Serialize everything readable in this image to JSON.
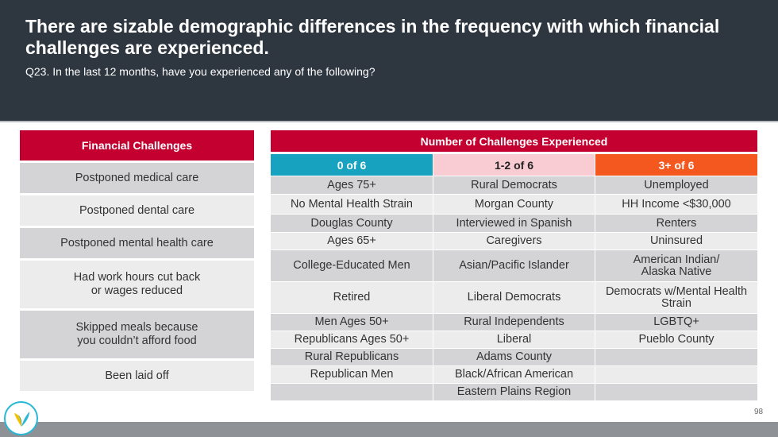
{
  "header": {
    "title": "There are sizable demographic differences in the frequency with which financial challenges are experienced.",
    "subtitle": "Q23. In the last 12 months, have you experienced any of the following?"
  },
  "left_table": {
    "heading": "Financial Challenges",
    "rows": [
      {
        "label": "Postponed medical care"
      },
      {
        "label": "Postponed dental care"
      },
      {
        "label": "Postponed mental health care"
      },
      {
        "label": "Had work hours cut back\nor wages reduced"
      },
      {
        "label": "Skipped meals because\nyou couldn’t afford food"
      },
      {
        "label": "Been laid off"
      }
    ]
  },
  "right_table": {
    "heading": "Number of Challenges Experienced",
    "columns": [
      "0 of 6",
      "1-2 of 6",
      "3+ of 6"
    ],
    "rows": [
      [
        "Ages 75+",
        "Rural Democrats",
        "Unemployed"
      ],
      [
        "No Mental Health Strain",
        "Morgan County",
        "HH Income <$30,000"
      ],
      [
        "Douglas County",
        "Interviewed in Spanish",
        "Renters"
      ],
      [
        "Ages 65+",
        "Caregivers",
        "Uninsured"
      ],
      [
        "College-Educated Men",
        "Asian/Pacific Islander",
        "American Indian/\nAlaska Native"
      ],
      [
        "Retired",
        "Liberal Democrats",
        "Democrats w/Mental Health Strain"
      ],
      [
        "Men Ages 50+",
        "Rural Independents",
        "LGBTQ+"
      ],
      [
        "Republicans Ages 50+",
        "Liberal",
        "Pueblo County"
      ],
      [
        "Rural Republicans",
        "Adams County",
        ""
      ],
      [
        "Republican Men",
        "Black/African American",
        ""
      ],
      [
        "",
        "Eastern Plains Region",
        ""
      ]
    ]
  },
  "footer": {
    "page_number": "98"
  },
  "colors": {
    "header_bg": "#2e3640",
    "accent_red": "#c3002f",
    "col0": "#17a2c0",
    "col1": "#f9ccd4",
    "col2": "#f4581f"
  },
  "icons": {
    "logo": "v-leaf-logo-icon"
  }
}
